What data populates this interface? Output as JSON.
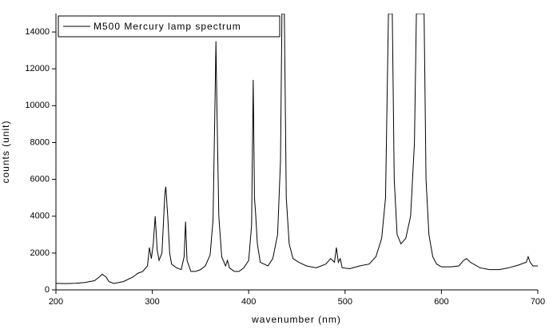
{
  "chart_data": {
    "type": "line",
    "xlabel": "wavenumber (nm)",
    "ylabel": "counts (unit)",
    "x": [
      200,
      210,
      220,
      230,
      240,
      245,
      248,
      252,
      255,
      260,
      270,
      280,
      285,
      290,
      295,
      297,
      299,
      301,
      303,
      305,
      307,
      310,
      313,
      314,
      316,
      318,
      320,
      325,
      330,
      333,
      334.5,
      336,
      340,
      345,
      350,
      355,
      360,
      363,
      365,
      366,
      367,
      369,
      372,
      376,
      378,
      380,
      385,
      390,
      395,
      400,
      403,
      404.7,
      406,
      407,
      409,
      412,
      420,
      425,
      430,
      433,
      434.5,
      437,
      439,
      442,
      446,
      452,
      460,
      470,
      480,
      485,
      489,
      491,
      493,
      495,
      497,
      505,
      515,
      525,
      532,
      538,
      542,
      545,
      549,
      551,
      554,
      558,
      563,
      568,
      572,
      574,
      582,
      584,
      587,
      591,
      595,
      600,
      610,
      618,
      623,
      626,
      630,
      640,
      650,
      660,
      670,
      680,
      688,
      690,
      692,
      695,
      700
    ],
    "series": [
      {
        "name": "M500 Mercury lamp spectrum",
        "color": "#000000",
        "values": [
          350,
          340,
          360,
          400,
          500,
          700,
          850,
          700,
          450,
          350,
          450,
          700,
          900,
          1000,
          1300,
          2300,
          1700,
          2500,
          4000,
          2200,
          1600,
          2000,
          5200,
          5600,
          4000,
          2000,
          1400,
          1200,
          1100,
          1800,
          3700,
          1600,
          1000,
          1000,
          1100,
          1300,
          1900,
          3800,
          10000,
          13500,
          10000,
          4000,
          1800,
          1300,
          1600,
          1200,
          1000,
          1000,
          1200,
          1600,
          3500,
          11400,
          5000,
          4300,
          2500,
          1500,
          1300,
          1700,
          3000,
          7000,
          15000,
          15000,
          5000,
          2500,
          1700,
          1500,
          1300,
          1200,
          1400,
          1700,
          1500,
          2300,
          1500,
          1700,
          1200,
          1150,
          1300,
          1400,
          1800,
          2800,
          5000,
          15000,
          15000,
          6000,
          3000,
          2500,
          2800,
          4000,
          8000,
          15000,
          15000,
          6000,
          3000,
          1800,
          1400,
          1250,
          1250,
          1300,
          1600,
          1700,
          1500,
          1200,
          1100,
          1100,
          1200,
          1350,
          1500,
          1800,
          1500,
          1300,
          1300
        ]
      }
    ],
    "xlim": [
      200,
      700
    ],
    "xticks": [
      200,
      300,
      400,
      500,
      600,
      700
    ],
    "ylim": [
      0,
      15000
    ],
    "yticks": [
      0,
      2000,
      4000,
      6000,
      8000,
      10000,
      12000,
      14000
    ],
    "grid": false,
    "legend": "upper left"
  }
}
